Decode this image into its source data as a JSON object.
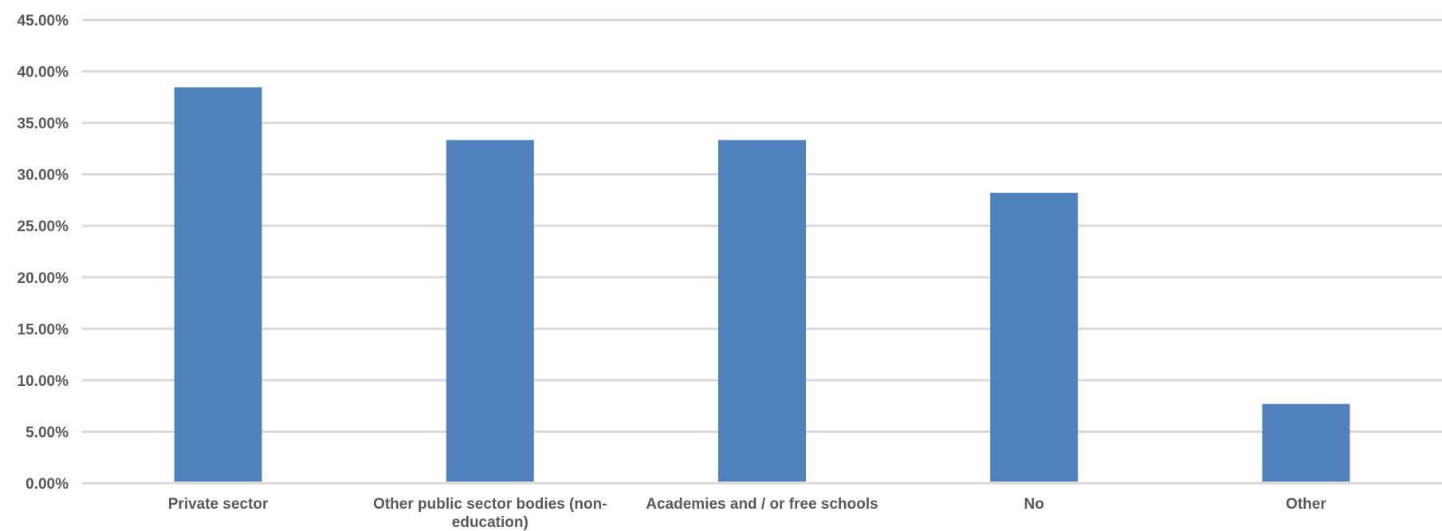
{
  "chart_data": {
    "type": "bar",
    "categories": [
      "Private sector",
      "Other public sector bodies (non-education)",
      "Academies and / or free schools",
      "No",
      "Other"
    ],
    "category_label_lines": [
      [
        "Private sector"
      ],
      [
        "Other public sector bodies (non-",
        "education)"
      ],
      [
        "Academies and / or free schools"
      ],
      [
        "No"
      ],
      [
        "Other"
      ]
    ],
    "values": [
      38.46,
      33.33,
      33.33,
      28.21,
      7.69
    ],
    "y_ticks": [
      "0.00%",
      "5.00%",
      "10.00%",
      "15.00%",
      "20.00%",
      "25.00%",
      "30.00%",
      "35.00%",
      "40.00%",
      "45.00%"
    ],
    "ylim": [
      0,
      45
    ],
    "title": "",
    "xlabel": "",
    "ylabel": "",
    "grid": true,
    "legend": "none",
    "bar_color": "#4f81bd",
    "grid_color": "#d9d9d9",
    "text_color": "#595959"
  }
}
